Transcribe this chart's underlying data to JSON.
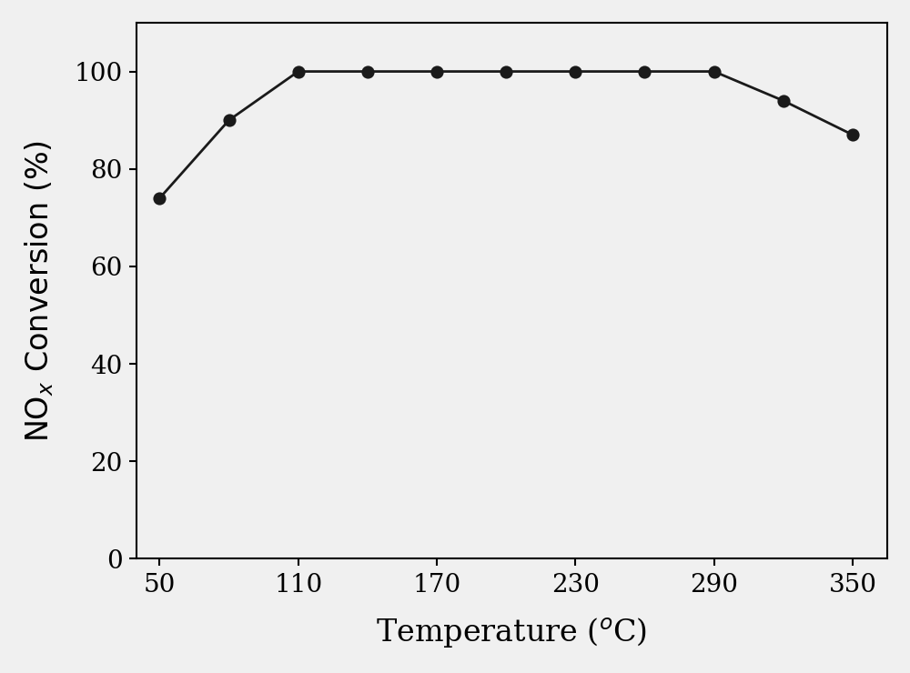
{
  "x": [
    50,
    80,
    110,
    140,
    170,
    200,
    230,
    260,
    290,
    320,
    350
  ],
  "y": [
    74,
    90,
    100,
    100,
    100,
    100,
    100,
    100,
    100,
    94,
    87
  ],
  "xlabel": "Temperature ($^{o}$C)",
  "xlim": [
    40,
    365
  ],
  "ylim": [
    0,
    110
  ],
  "xticks": [
    50,
    110,
    170,
    230,
    290,
    350
  ],
  "yticks": [
    0,
    20,
    40,
    60,
    80,
    100
  ],
  "line_color": "#1a1a1a",
  "marker": "o",
  "marker_size": 9,
  "marker_facecolor": "#1a1a1a",
  "marker_edgecolor": "#1a1a1a",
  "line_width": 2.0,
  "background_color": "#f0f0f0",
  "axes_background_color": "#f0f0f0",
  "tick_fontsize": 20,
  "label_fontsize": 24,
  "spine_linewidth": 1.5
}
